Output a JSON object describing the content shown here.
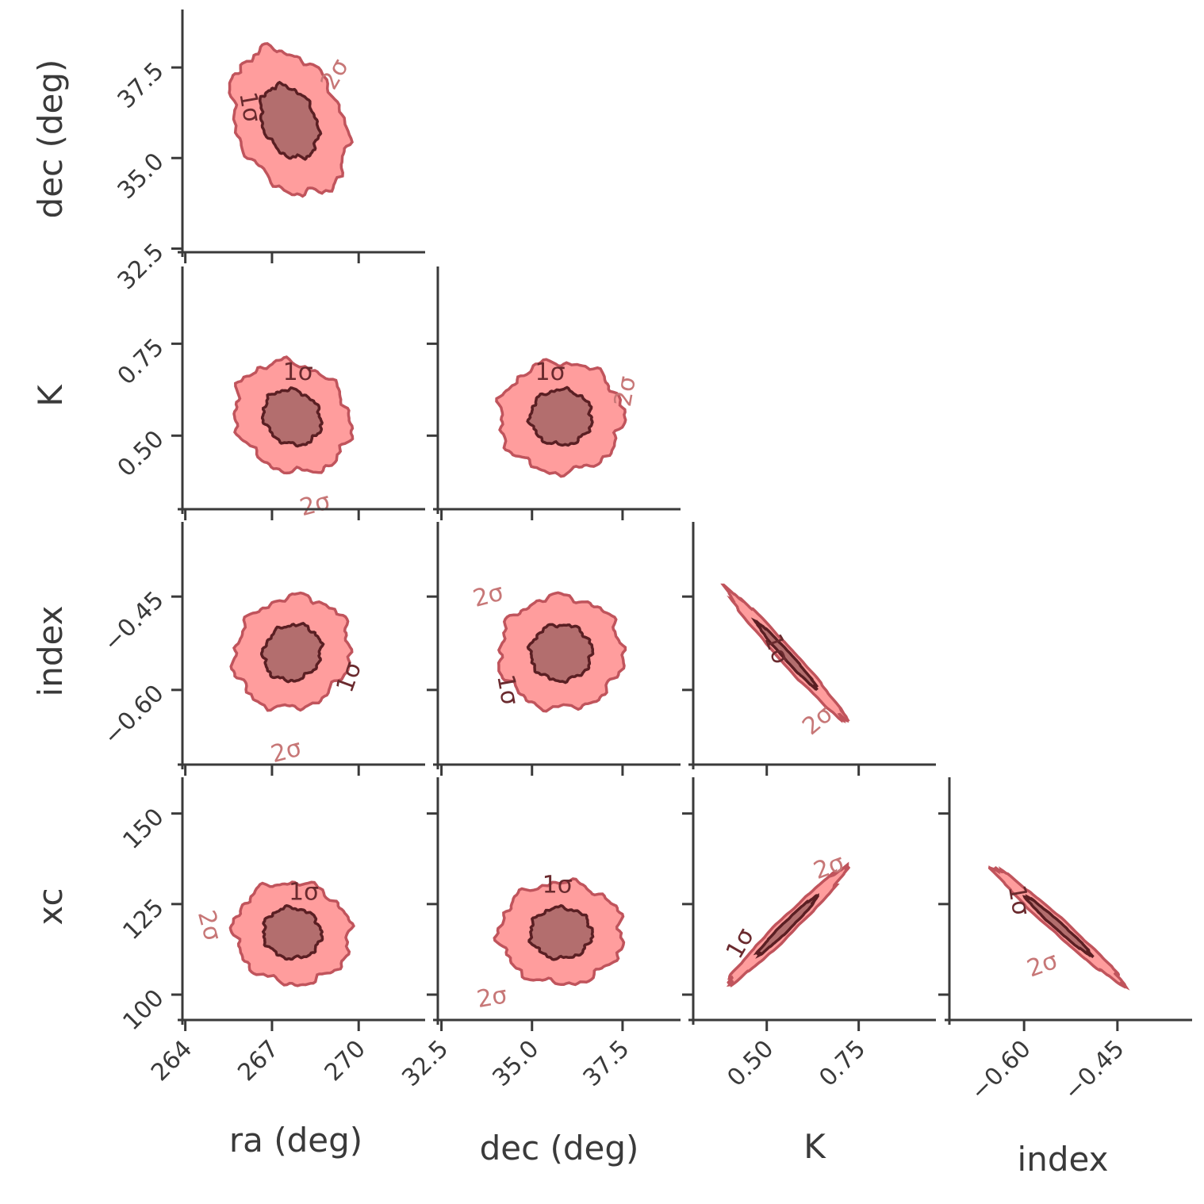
{
  "colors": {
    "outer_fill": "#ff9d9d",
    "outer_edge": "#c0545c",
    "inner_fill": "#b36e6e",
    "inner_edge": "#5a1f23",
    "axis": "#3a3a3a",
    "label_inner": "#6a2a2e",
    "label_outer": "#c77777"
  },
  "chart_data": {
    "type": "corner",
    "title": "",
    "parameters": [
      {
        "key": "ra",
        "label": "ra (deg)",
        "range": [
          263.9,
          272.3
        ],
        "ticks": [
          264,
          267,
          270
        ],
        "tick_labels": [
          "264",
          "267",
          "270"
        ]
      },
      {
        "key": "dec",
        "label": "dec (deg)",
        "range": [
          32.4,
          39.1
        ],
        "ticks": [
          32.5,
          35.0,
          37.5
        ],
        "tick_labels": [
          "32.5",
          "35.0",
          "37.5"
        ]
      },
      {
        "key": "K",
        "label": "K",
        "range": [
          0.3,
          0.96
        ],
        "ticks": [
          0.5,
          0.75
        ],
        "tick_labels": [
          "0.50",
          "0.75"
        ]
      },
      {
        "key": "index",
        "label": "index",
        "range": [
          -0.72,
          -0.33
        ],
        "ticks": [
          -0.6,
          -0.45
        ],
        "tick_labels": [
          "−0.60",
          "−0.45"
        ]
      },
      {
        "key": "xc",
        "label": "xc",
        "range": [
          93,
          160
        ],
        "ticks": [
          100,
          125,
          150
        ],
        "tick_labels": [
          "100",
          "125",
          "150"
        ]
      }
    ],
    "contour_levels": [
      "1σ",
      "2σ"
    ],
    "panels": [
      {
        "x": "ra",
        "y": "dec",
        "mean": [
          267.6,
          36.0
        ],
        "sd": [
          1.0,
          1.0
        ],
        "corr": -0.3,
        "labels": [
          {
            "text": "1σ",
            "level": 0,
            "at": [
              266.2,
              36.4
            ],
            "rot": 80
          },
          {
            "text": "2σ",
            "level": 1,
            "at": [
              269.2,
              37.3
            ],
            "rot": -60
          }
        ]
      },
      {
        "x": "ra",
        "y": "K",
        "mean": [
          267.7,
          0.55
        ],
        "sd": [
          1.0,
          0.075
        ],
        "corr": -0.15,
        "labels": [
          {
            "text": "1σ",
            "level": 0,
            "at": [
              267.9,
              0.67
            ],
            "rot": 0
          },
          {
            "text": "2σ",
            "level": 1,
            "at": [
              268.5,
              0.31
            ],
            "rot": -15
          }
        ]
      },
      {
        "x": "ra",
        "y": "index",
        "mean": [
          267.7,
          -0.54
        ],
        "sd": [
          1.0,
          0.045
        ],
        "corr": 0.1,
        "labels": [
          {
            "text": "1σ",
            "level": 0,
            "at": [
              269.7,
              -0.58
            ],
            "rot": -70
          },
          {
            "text": "2σ",
            "level": 1,
            "at": [
              267.5,
              -0.7
            ],
            "rot": -15
          }
        ]
      },
      {
        "x": "ra",
        "y": "xc",
        "mean": [
          267.7,
          117
        ],
        "sd": [
          1.0,
          7
        ],
        "corr": -0.05,
        "labels": [
          {
            "text": "1σ",
            "level": 0,
            "at": [
              268.1,
              128
            ],
            "rot": 0
          },
          {
            "text": "2σ",
            "level": 1,
            "at": [
              264.8,
              119
            ],
            "rot": 75
          }
        ]
      },
      {
        "x": "dec",
        "y": "K",
        "mean": [
          35.8,
          0.55
        ],
        "sd": [
          0.85,
          0.075
        ],
        "corr": 0.0,
        "labels": [
          {
            "text": "1σ",
            "level": 0,
            "at": [
              35.5,
              0.67
            ],
            "rot": 0
          },
          {
            "text": "2σ",
            "level": 1,
            "at": [
              37.6,
              0.62
            ],
            "rot": -80
          }
        ]
      },
      {
        "x": "dec",
        "y": "index",
        "mean": [
          35.8,
          -0.54
        ],
        "sd": [
          0.85,
          0.045
        ],
        "corr": 0.0,
        "labels": [
          {
            "text": "1σ",
            "level": 0,
            "at": [
              34.3,
              -0.6
            ],
            "rot": 80
          },
          {
            "text": "2σ",
            "level": 1,
            "at": [
              33.8,
              -0.45
            ],
            "rot": -15
          }
        ]
      },
      {
        "x": "dec",
        "y": "xc",
        "mean": [
          35.8,
          117
        ],
        "sd": [
          0.85,
          7
        ],
        "corr": 0.0,
        "labels": [
          {
            "text": "1σ",
            "level": 0,
            "at": [
              35.7,
              130
            ],
            "rot": 0
          },
          {
            "text": "2σ",
            "level": 1,
            "at": [
              33.9,
              99
            ],
            "rot": -10
          }
        ]
      },
      {
        "x": "K",
        "y": "index",
        "mean": [
          0.555,
          -0.545
        ],
        "sd": [
          0.08,
          0.052
        ],
        "corr": -0.985,
        "labels": [
          {
            "text": "1σ",
            "level": 0,
            "at": [
              0.525,
              -0.535
            ],
            "rot": 70
          },
          {
            "text": "2σ",
            "level": 1,
            "at": [
              0.64,
              -0.65
            ],
            "rot": -40
          }
        ]
      },
      {
        "x": "K",
        "y": "xc",
        "mean": [
          0.555,
          119
        ],
        "sd": [
          0.08,
          8
        ],
        "corr": 0.98,
        "labels": [
          {
            "text": "1σ",
            "level": 0,
            "at": [
              0.43,
              114
            ],
            "rot": -60
          },
          {
            "text": "2σ",
            "level": 1,
            "at": [
              0.67,
              135
            ],
            "rot": -20
          }
        ]
      },
      {
        "x": "index",
        "y": "xc",
        "mean": [
          -0.545,
          119
        ],
        "sd": [
          0.052,
          8
        ],
        "corr": -0.985,
        "labels": [
          {
            "text": "1σ",
            "level": 0,
            "at": [
              -0.61,
              126
            ],
            "rot": 80
          },
          {
            "text": "2σ",
            "level": 1,
            "at": [
              -0.57,
              108
            ],
            "rot": -20
          }
        ]
      }
    ]
  }
}
